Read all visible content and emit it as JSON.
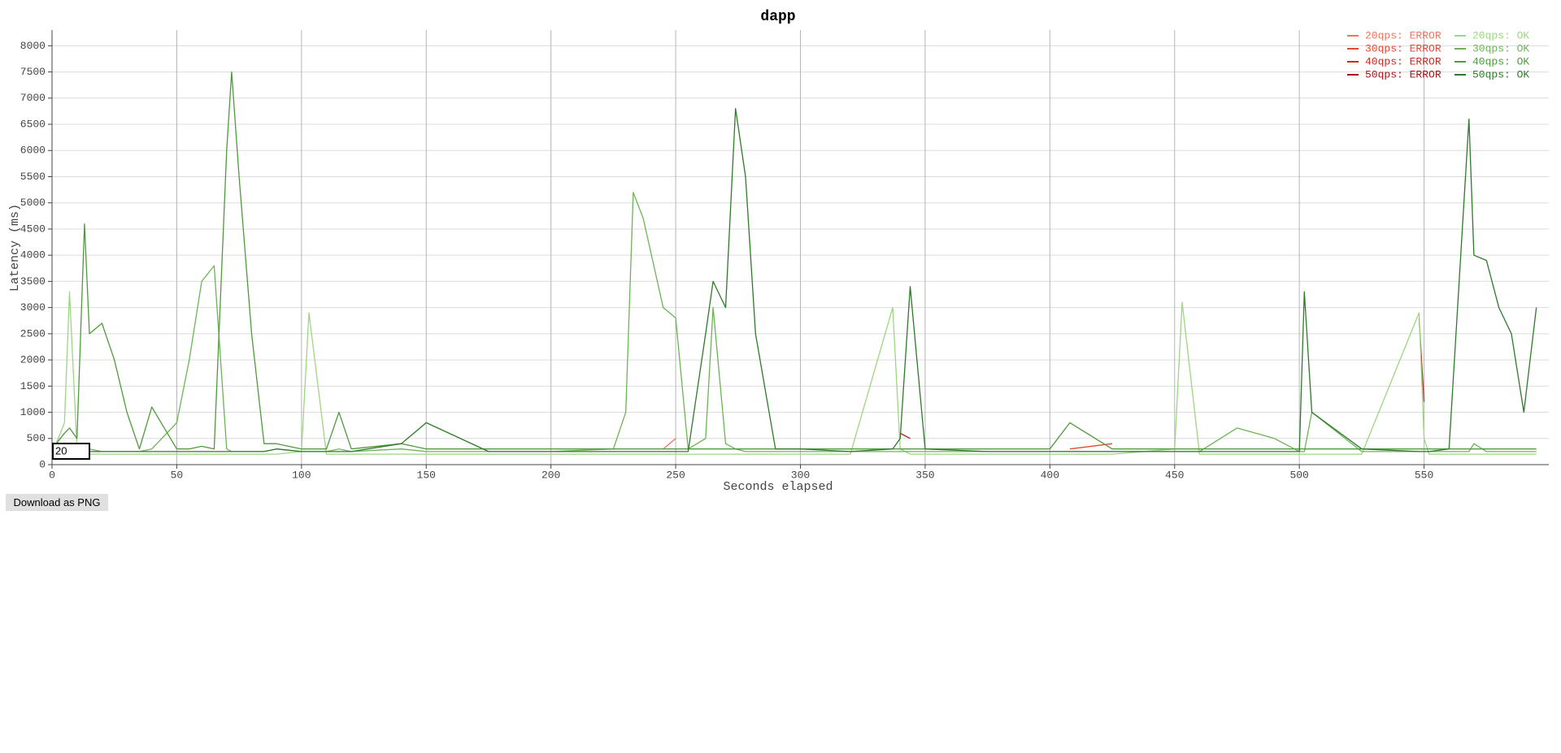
{
  "chart_data": {
    "type": "line",
    "title": "dapp",
    "x_label": "Seconds elapsed",
    "y_label": "Latency (ms)",
    "xlim": [
      0,
      600
    ],
    "xticks": [
      0,
      50,
      100,
      150,
      200,
      250,
      300,
      350,
      400,
      450,
      500,
      550
    ],
    "ylim": [
      0,
      8300
    ],
    "yticks": [
      0,
      500,
      1000,
      1500,
      2000,
      2500,
      3000,
      3500,
      4000,
      4500,
      5000,
      5500,
      6000,
      6500,
      7000,
      7500,
      8000
    ],
    "grid": true,
    "legend": "upper right",
    "x": [
      0,
      5,
      7,
      10,
      13,
      15,
      20,
      25,
      30,
      35,
      40,
      50,
      55,
      60,
      65,
      70,
      72,
      75,
      80,
      85,
      90,
      100,
      103,
      110,
      115,
      120,
      140,
      150,
      175,
      200,
      225,
      230,
      233,
      237,
      245,
      250,
      255,
      262,
      265,
      270,
      274,
      278,
      282,
      290,
      300,
      320,
      337,
      340,
      344,
      350,
      375,
      400,
      408,
      425,
      450,
      453,
      460,
      475,
      490,
      500,
      502,
      505,
      525,
      548,
      550,
      552,
      560,
      568,
      570,
      575,
      580,
      585,
      590,
      595
    ],
    "series": [
      {
        "name": "20qps: ERROR",
        "color": "#f4735f",
        "values": [
          null,
          null,
          null,
          null,
          null,
          null,
          null,
          null,
          null,
          null,
          null,
          null,
          null,
          null,
          null,
          null,
          null,
          null,
          null,
          null,
          null,
          null,
          null,
          null,
          null,
          null,
          null,
          null,
          null,
          null,
          null,
          null,
          null,
          null,
          300,
          500,
          null,
          null,
          null,
          null,
          null,
          null,
          null,
          null,
          null,
          null,
          null,
          null,
          null,
          null,
          null,
          null,
          null,
          null,
          null,
          null,
          null,
          null,
          null,
          null,
          null,
          null,
          null,
          null,
          null,
          null,
          null,
          null,
          null,
          null,
          null,
          null,
          null,
          null
        ]
      },
      {
        "name": "30qps: ERROR",
        "color": "#e34a33",
        "values": [
          null,
          null,
          null,
          null,
          null,
          null,
          null,
          null,
          null,
          null,
          null,
          null,
          null,
          null,
          null,
          null,
          null,
          null,
          null,
          null,
          null,
          null,
          null,
          null,
          null,
          null,
          null,
          null,
          null,
          null,
          null,
          null,
          null,
          null,
          null,
          null,
          null,
          null,
          null,
          null,
          null,
          null,
          null,
          null,
          null,
          null,
          null,
          null,
          null,
          null,
          null,
          null,
          300,
          400,
          null,
          null,
          null,
          null,
          null,
          null,
          null,
          null,
          null,
          null,
          null,
          null,
          null,
          null,
          null,
          null,
          null,
          null,
          null,
          null
        ]
      },
      {
        "name": "40qps: ERROR",
        "color": "#cc2a22",
        "values": [
          null,
          null,
          null,
          null,
          null,
          null,
          null,
          null,
          null,
          null,
          null,
          null,
          null,
          null,
          null,
          null,
          null,
          null,
          null,
          null,
          null,
          null,
          null,
          null,
          null,
          null,
          null,
          null,
          null,
          null,
          null,
          null,
          null,
          null,
          null,
          null,
          null,
          null,
          null,
          null,
          null,
          null,
          null,
          null,
          null,
          null,
          null,
          null,
          null,
          null,
          null,
          null,
          null,
          null,
          null,
          null,
          null,
          null,
          null,
          null,
          null,
          null,
          null,
          2800,
          1200,
          null,
          null,
          null,
          null,
          null,
          null,
          null,
          null,
          null
        ]
      },
      {
        "name": "50qps: ERROR",
        "color": "#a51515",
        "values": [
          null,
          null,
          null,
          null,
          null,
          null,
          null,
          null,
          null,
          null,
          null,
          null,
          null,
          null,
          null,
          null,
          null,
          null,
          null,
          null,
          null,
          null,
          null,
          null,
          null,
          null,
          null,
          null,
          null,
          null,
          null,
          null,
          null,
          null,
          null,
          null,
          null,
          null,
          null,
          null,
          null,
          null,
          null,
          null,
          null,
          null,
          null,
          600,
          500,
          null,
          null,
          null,
          null,
          null,
          null,
          null,
          null,
          null,
          null,
          null,
          null,
          null,
          null,
          null,
          null,
          null,
          null,
          null,
          null,
          null,
          null,
          null,
          null,
          null
        ]
      },
      {
        "name": "20qps: OK",
        "color": "#9dd682",
        "values": [
          200,
          800,
          3300,
          300,
          200,
          200,
          200,
          200,
          200,
          200,
          200,
          200,
          200,
          200,
          200,
          200,
          200,
          200,
          200,
          200,
          200,
          250,
          2900,
          200,
          200,
          200,
          200,
          200,
          200,
          200,
          200,
          200,
          200,
          200,
          200,
          200,
          200,
          200,
          200,
          200,
          200,
          200,
          200,
          200,
          200,
          200,
          3000,
          300,
          200,
          200,
          200,
          200,
          200,
          200,
          300,
          3100,
          200,
          200,
          200,
          200,
          200,
          200,
          200,
          2900,
          500,
          200,
          200,
          200,
          200,
          200,
          200,
          200,
          200,
          200
        ]
      },
      {
        "name": "30qps: OK",
        "color": "#6cb456",
        "values": [
          250,
          300,
          300,
          300,
          300,
          300,
          250,
          250,
          250,
          250,
          300,
          800,
          2000,
          3500,
          3800,
          300,
          250,
          250,
          250,
          250,
          300,
          250,
          250,
          250,
          300,
          250,
          300,
          250,
          250,
          250,
          300,
          1000,
          5200,
          4700,
          3000,
          2800,
          300,
          500,
          3000,
          400,
          300,
          250,
          250,
          250,
          250,
          250,
          250,
          250,
          250,
          250,
          250,
          250,
          250,
          250,
          250,
          250,
          250,
          700,
          500,
          250,
          250,
          1000,
          250,
          250,
          250,
          250,
          250,
          250,
          400,
          250,
          250,
          250,
          250,
          250
        ]
      },
      {
        "name": "40qps: OK",
        "color": "#4e9a3c",
        "values": [
          300,
          600,
          700,
          500,
          4600,
          2500,
          2700,
          2000,
          1000,
          300,
          1100,
          300,
          300,
          350,
          300,
          6000,
          7500,
          5500,
          2500,
          400,
          400,
          300,
          300,
          300,
          1000,
          300,
          400,
          300,
          300,
          300,
          300,
          300,
          300,
          300,
          300,
          300,
          300,
          300,
          300,
          300,
          300,
          300,
          300,
          300,
          300,
          300,
          300,
          300,
          300,
          300,
          300,
          300,
          800,
          300,
          300,
          300,
          300,
          300,
          300,
          300,
          300,
          300,
          300,
          300,
          300,
          300,
          300,
          300,
          300,
          300,
          300,
          300,
          300,
          300
        ]
      },
      {
        "name": "50qps: OK",
        "color": "#2f7a2a",
        "values": [
          250,
          250,
          250,
          250,
          250,
          250,
          250,
          250,
          250,
          250,
          250,
          250,
          250,
          250,
          250,
          250,
          250,
          250,
          250,
          250,
          300,
          250,
          250,
          250,
          250,
          250,
          400,
          800,
          250,
          250,
          250,
          250,
          250,
          250,
          250,
          250,
          250,
          2500,
          3500,
          3000,
          6800,
          5500,
          2500,
          300,
          300,
          250,
          300,
          500,
          3400,
          300,
          250,
          250,
          250,
          250,
          250,
          250,
          250,
          250,
          250,
          250,
          3300,
          1000,
          300,
          250,
          250,
          250,
          300,
          6600,
          4000,
          3900,
          3000,
          2500,
          1000,
          3000
        ]
      }
    ]
  },
  "ui": {
    "input_value": "20",
    "download_button": "Download as PNG"
  }
}
